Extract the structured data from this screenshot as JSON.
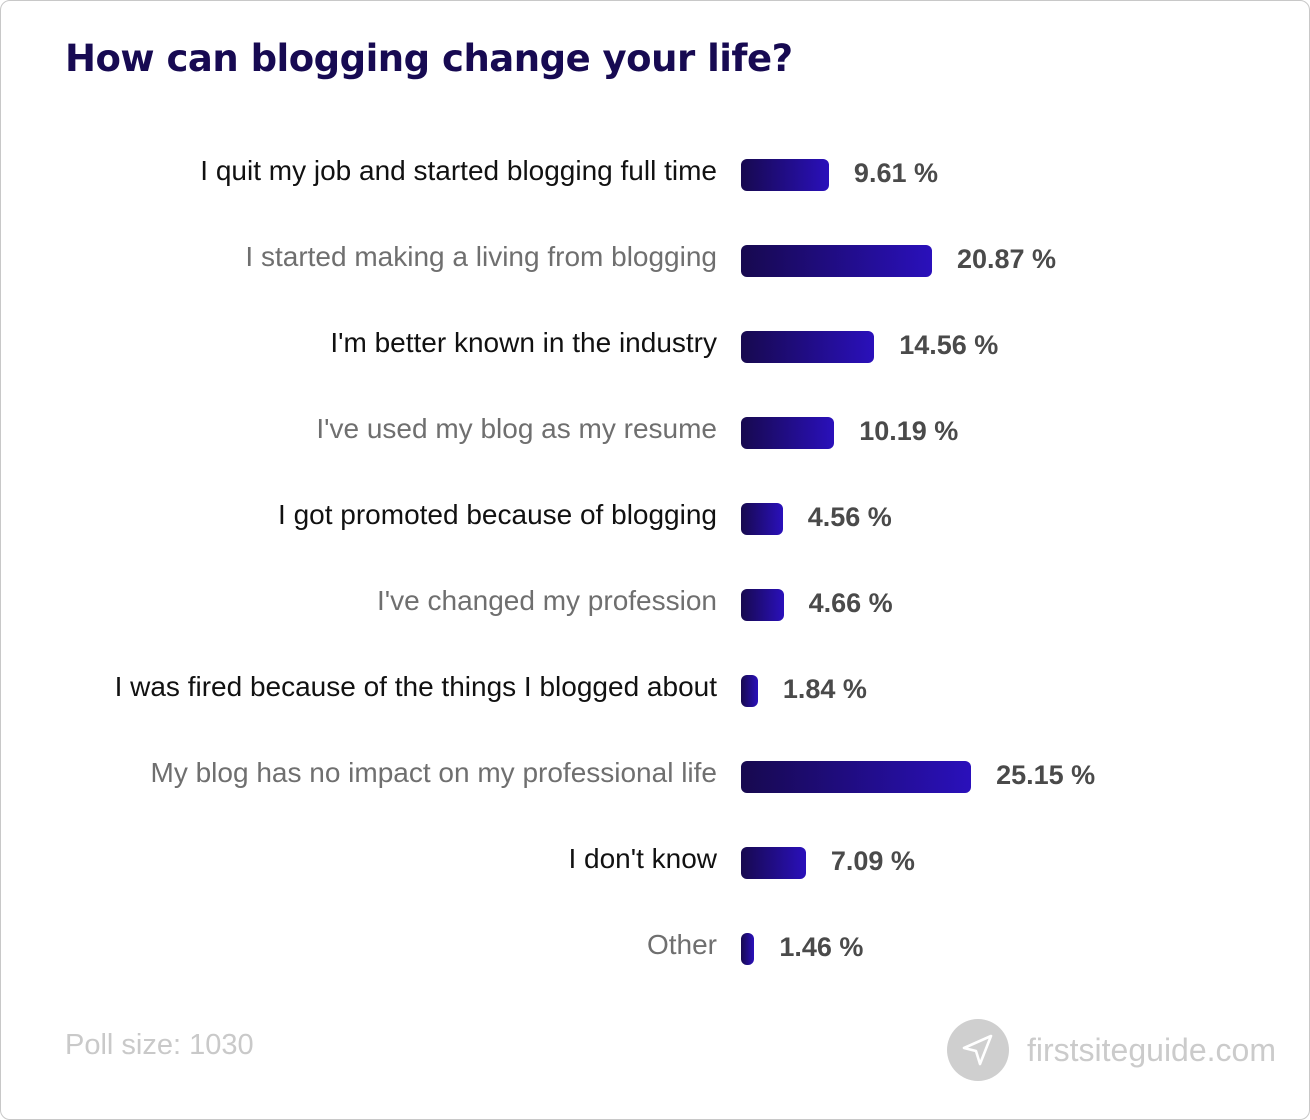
{
  "header": {
    "title": "How can blogging change your life?"
  },
  "footer": {
    "poll_size": "Poll size: 1030",
    "brand": "firstsiteguide.com",
    "brand_icon": "paper-plane-icon"
  },
  "colors": {
    "title": "#170a52",
    "bar_start": "#17094f",
    "bar_end": "#2a10bb",
    "value_text": "#4a4a4a",
    "label_dark": "#111111",
    "label_gray": "#6f6f6f",
    "footer_text": "#c9c9c9"
  },
  "rows": [
    {
      "label": "I quit my job and started blogging full time",
      "value": 9.61,
      "value_label": "9.61 %"
    },
    {
      "label": "I started making a living from blogging",
      "value": 20.87,
      "value_label": "20.87 %"
    },
    {
      "label": "I'm better known in the industry",
      "value": 14.56,
      "value_label": "14.56 %"
    },
    {
      "label": "I've used my blog as my resume",
      "value": 10.19,
      "value_label": "10.19 %"
    },
    {
      "label": "I got promoted because of blogging",
      "value": 4.56,
      "value_label": "4.56 %"
    },
    {
      "label": "I've changed my profession",
      "value": 4.66,
      "value_label": "4.66 %"
    },
    {
      "label": "I was fired because of the things I blogged about",
      "value": 1.84,
      "value_label": "1.84 %"
    },
    {
      "label": "My blog has no impact on my professional life",
      "value": 25.15,
      "value_label": "25.15 %"
    },
    {
      "label": "I don't know",
      "value": 7.09,
      "value_label": "7.09 %"
    },
    {
      "label": "Other",
      "value": 1.46,
      "value_label": "1.46 %"
    }
  ],
  "chart_data": {
    "type": "bar",
    "orientation": "horizontal",
    "title": "How can blogging change your life?",
    "categories": [
      "I quit my job and started blogging full time",
      "I started making a living from blogging",
      "I'm better known in the industry",
      "I've used my blog as my resume",
      "I got promoted because of blogging",
      "I've changed my profession",
      "I was fired because of the things I blogged about",
      "My blog has no impact on my professional life",
      "I don't know",
      "Other"
    ],
    "values": [
      9.61,
      20.87,
      14.56,
      10.19,
      4.56,
      4.66,
      1.84,
      25.15,
      7.09,
      1.46
    ],
    "unit": "%",
    "xlabel": "",
    "ylabel": "",
    "grid": false,
    "legend": null,
    "annotations": [
      "Poll size: 1030",
      "firstsiteguide.com"
    ]
  }
}
